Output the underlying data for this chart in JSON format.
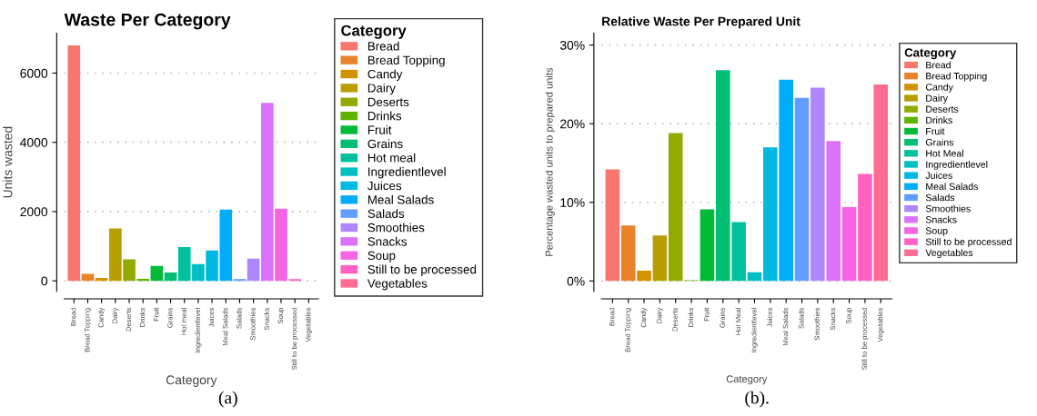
{
  "chart_data": [
    {
      "type": "bar",
      "stacked": true,
      "title": "Waste Per Category",
      "xlabel": "Category",
      "ylabel": "Units wasted",
      "legend_title": "Category",
      "legend": "right",
      "grid": "y",
      "categories": [
        "Bread",
        "Bread Topping",
        "Candy",
        "Dairy",
        "Deserts",
        "Drinks",
        "Fruit",
        "Grains",
        "Hot meal",
        "Ingredientlevel",
        "Juices",
        "Meal Salads",
        "Salads",
        "Smoothies",
        "Snacks",
        "Soup",
        "Still to be processed",
        "Vegetables"
      ],
      "series": [
        {
          "name": "Bread",
          "color": "#f8766d",
          "values": [
            6800,
            null,
            null,
            null,
            null,
            null,
            null,
            null,
            null,
            null,
            null,
            null,
            null,
            null,
            null,
            null,
            null,
            null
          ]
        },
        {
          "name": "Bread Topping",
          "color": "#e8832a",
          "values": [
            null,
            200,
            null,
            null,
            null,
            null,
            null,
            null,
            null,
            null,
            null,
            null,
            null,
            null,
            null,
            null,
            null,
            null
          ]
        },
        {
          "name": "Candy",
          "color": "#d39200",
          "values": [
            null,
            null,
            80,
            null,
            null,
            null,
            null,
            null,
            null,
            null,
            null,
            null,
            null,
            null,
            null,
            null,
            null,
            null
          ]
        },
        {
          "name": "Dairy",
          "color": "#b79f00",
          "values": [
            null,
            null,
            null,
            1510,
            null,
            null,
            null,
            null,
            null,
            null,
            null,
            null,
            null,
            null,
            null,
            null,
            null,
            null
          ]
        },
        {
          "name": "Deserts",
          "color": "#93aa00",
          "values": [
            null,
            null,
            null,
            null,
            620,
            null,
            null,
            null,
            null,
            null,
            null,
            null,
            null,
            null,
            null,
            null,
            null,
            null
          ]
        },
        {
          "name": "Drinks",
          "color": "#5eb300",
          "values": [
            null,
            null,
            null,
            null,
            null,
            60,
            null,
            null,
            null,
            null,
            null,
            null,
            null,
            null,
            null,
            null,
            null,
            null
          ]
        },
        {
          "name": "Fruit",
          "color": "#00ba38",
          "values": [
            null,
            null,
            null,
            null,
            null,
            null,
            430,
            null,
            null,
            null,
            null,
            null,
            null,
            null,
            null,
            null,
            null,
            null
          ]
        },
        {
          "name": "Grains",
          "color": "#00bf74",
          "values": [
            null,
            null,
            null,
            null,
            null,
            null,
            null,
            240,
            null,
            null,
            null,
            null,
            null,
            null,
            null,
            null,
            null,
            null
          ]
        },
        {
          "name": "Hot meal",
          "color": "#00c19f",
          "values": [
            null,
            null,
            null,
            null,
            null,
            null,
            null,
            null,
            975,
            null,
            null,
            null,
            null,
            null,
            null,
            null,
            null,
            null
          ]
        },
        {
          "name": "Ingredientlevel",
          "color": "#00bfc4",
          "values": [
            null,
            null,
            null,
            null,
            null,
            null,
            null,
            null,
            null,
            480,
            null,
            null,
            null,
            null,
            null,
            null,
            null,
            null
          ]
        },
        {
          "name": "Juices",
          "color": "#00b9e3",
          "values": [
            null,
            null,
            null,
            null,
            null,
            null,
            null,
            null,
            null,
            null,
            875,
            null,
            null,
            null,
            null,
            null,
            null,
            null
          ]
        },
        {
          "name": "Meal Salads",
          "color": "#00adfa",
          "values": [
            null,
            null,
            null,
            null,
            null,
            null,
            null,
            null,
            null,
            null,
            null,
            2060,
            null,
            null,
            null,
            null,
            null,
            null
          ]
        },
        {
          "name": "Salads",
          "color": "#619cff",
          "values": [
            null,
            null,
            null,
            null,
            null,
            null,
            null,
            null,
            null,
            null,
            null,
            null,
            50,
            null,
            null,
            null,
            null,
            null
          ]
        },
        {
          "name": "Smoothies",
          "color": "#ae87ff",
          "values": [
            null,
            null,
            null,
            null,
            null,
            null,
            null,
            null,
            null,
            null,
            null,
            null,
            null,
            640,
            null,
            null,
            null,
            null
          ]
        },
        {
          "name": "Snacks",
          "color": "#db72fb",
          "values": [
            null,
            null,
            null,
            null,
            null,
            null,
            null,
            null,
            null,
            null,
            null,
            null,
            null,
            null,
            5140,
            null,
            null,
            null
          ]
        },
        {
          "name": "Soup",
          "color": "#f564e3",
          "values": [
            null,
            null,
            null,
            null,
            null,
            null,
            null,
            null,
            null,
            null,
            null,
            null,
            null,
            null,
            null,
            2085,
            null,
            null
          ]
        },
        {
          "name": "Still to be processed",
          "color": "#ff61c3",
          "values": [
            null,
            null,
            null,
            null,
            null,
            null,
            null,
            null,
            null,
            null,
            null,
            null,
            null,
            null,
            null,
            null,
            50,
            null
          ]
        },
        {
          "name": "Vegetables",
          "color": "#ff6c91",
          "values": [
            null,
            null,
            null,
            null,
            null,
            null,
            null,
            null,
            null,
            null,
            null,
            null,
            null,
            null,
            null,
            null,
            null,
            0
          ]
        }
      ],
      "ylim": [
        -300,
        7150
      ],
      "yticks": [
        0,
        2000,
        4000,
        6000
      ],
      "annotations": [
        "(a)"
      ]
    },
    {
      "type": "bar",
      "stacked": true,
      "title": "Relative Waste Per Prepared Unit",
      "xlabel": "Category",
      "ylabel": "Percentage wasted units to prepared units",
      "legend_title": "Category",
      "legend": "right",
      "grid": "y",
      "categories": [
        "Bread",
        "Bread Topping",
        "Candy",
        "Dairy",
        "Deserts",
        "Drinks",
        "Fruit",
        "Grains",
        "Hot Meal",
        "Ingredientlevel",
        "Juices",
        "Meal Salads",
        "Salads",
        "Smoothies",
        "Snacks",
        "Soup",
        "Still to be processed",
        "Vegetables"
      ],
      "series": [
        {
          "name": "Bread",
          "color": "#f8766d",
          "values": [
            14.2,
            null,
            null,
            null,
            null,
            null,
            null,
            null,
            null,
            null,
            null,
            null,
            null,
            null,
            null,
            null,
            null,
            null
          ]
        },
        {
          "name": "Bread Topping",
          "color": "#e8832a",
          "values": [
            null,
            7.05,
            null,
            null,
            null,
            null,
            null,
            null,
            null,
            null,
            null,
            null,
            null,
            null,
            null,
            null,
            null,
            null
          ]
        },
        {
          "name": "Candy",
          "color": "#d39200",
          "values": [
            null,
            null,
            1.3,
            null,
            null,
            null,
            null,
            null,
            null,
            null,
            null,
            null,
            null,
            null,
            null,
            null,
            null,
            null
          ]
        },
        {
          "name": "Dairy",
          "color": "#b79f00",
          "values": [
            null,
            null,
            null,
            5.8,
            null,
            null,
            null,
            null,
            null,
            null,
            null,
            null,
            null,
            null,
            null,
            null,
            null,
            null
          ]
        },
        {
          "name": "Deserts",
          "color": "#93aa00",
          "values": [
            null,
            null,
            null,
            null,
            18.8,
            null,
            null,
            null,
            null,
            null,
            null,
            null,
            null,
            null,
            null,
            null,
            null,
            null
          ]
        },
        {
          "name": "Drinks",
          "color": "#5eb300",
          "values": [
            null,
            null,
            null,
            null,
            null,
            0.1,
            null,
            null,
            null,
            null,
            null,
            null,
            null,
            null,
            null,
            null,
            null,
            null
          ]
        },
        {
          "name": "Fruit",
          "color": "#00ba38",
          "values": [
            null,
            null,
            null,
            null,
            null,
            null,
            9.1,
            null,
            null,
            null,
            null,
            null,
            null,
            null,
            null,
            null,
            null,
            null
          ]
        },
        {
          "name": "Grains",
          "color": "#00bf74",
          "values": [
            null,
            null,
            null,
            null,
            null,
            null,
            null,
            26.8,
            null,
            null,
            null,
            null,
            null,
            null,
            null,
            null,
            null,
            null
          ]
        },
        {
          "name": "Hot Meal",
          "color": "#00c19f",
          "values": [
            null,
            null,
            null,
            null,
            null,
            null,
            null,
            null,
            7.5,
            null,
            null,
            null,
            null,
            null,
            null,
            null,
            null,
            null
          ]
        },
        {
          "name": "Ingredientlevel",
          "color": "#00bfc4",
          "values": [
            null,
            null,
            null,
            null,
            null,
            null,
            null,
            null,
            null,
            1.1,
            null,
            null,
            null,
            null,
            null,
            null,
            null,
            null
          ]
        },
        {
          "name": "Juices",
          "color": "#00b9e3",
          "values": [
            null,
            null,
            null,
            null,
            null,
            null,
            null,
            null,
            null,
            null,
            17.0,
            null,
            null,
            null,
            null,
            null,
            null,
            null
          ]
        },
        {
          "name": "Meal Salads",
          "color": "#00adfa",
          "values": [
            null,
            null,
            null,
            null,
            null,
            null,
            null,
            null,
            null,
            null,
            null,
            25.6,
            null,
            null,
            null,
            null,
            null,
            null
          ]
        },
        {
          "name": "Salads",
          "color": "#619cff",
          "values": [
            null,
            null,
            null,
            null,
            null,
            null,
            null,
            null,
            null,
            null,
            null,
            null,
            23.3,
            null,
            null,
            null,
            null,
            null
          ]
        },
        {
          "name": "Smoothies",
          "color": "#ae87ff",
          "values": [
            null,
            null,
            null,
            null,
            null,
            null,
            null,
            null,
            null,
            null,
            null,
            null,
            null,
            24.6,
            null,
            null,
            null,
            null
          ]
        },
        {
          "name": "Snacks",
          "color": "#db72fb",
          "values": [
            null,
            null,
            null,
            null,
            null,
            null,
            null,
            null,
            null,
            null,
            null,
            null,
            null,
            null,
            17.8,
            null,
            null,
            null
          ]
        },
        {
          "name": "Soup",
          "color": "#f564e3",
          "values": [
            null,
            null,
            null,
            null,
            null,
            null,
            null,
            null,
            null,
            null,
            null,
            null,
            null,
            null,
            null,
            9.4,
            null,
            null
          ]
        },
        {
          "name": "Still to be processed",
          "color": "#ff61c3",
          "values": [
            null,
            null,
            null,
            null,
            null,
            null,
            null,
            null,
            null,
            null,
            null,
            null,
            null,
            null,
            null,
            null,
            13.6,
            null
          ]
        },
        {
          "name": "Vegetables",
          "color": "#ff6c91",
          "values": [
            null,
            null,
            null,
            null,
            null,
            null,
            null,
            null,
            null,
            null,
            null,
            null,
            null,
            null,
            null,
            null,
            null,
            25.0
          ]
        }
      ],
      "ylim": [
        -1.3,
        31.5
      ],
      "yticks": [
        {
          "value": 0,
          "label": "0%"
        },
        {
          "value": 10,
          "label": "10%"
        },
        {
          "value": 20,
          "label": "20%"
        },
        {
          "value": 30,
          "label": "30%"
        }
      ],
      "annotations": [
        "(b)."
      ]
    }
  ]
}
